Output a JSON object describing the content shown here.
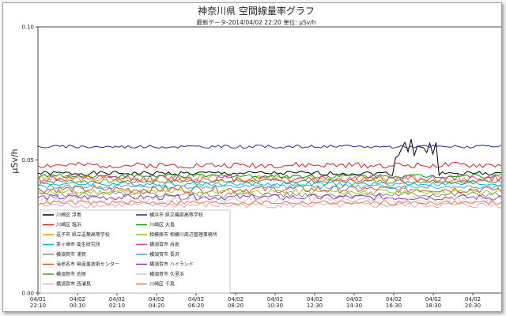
{
  "chart_data": {
    "type": "line",
    "title": "神奈川県 空間線量率グラフ",
    "subtitle": "最新データ-2014/04/02 22:20 単位: μSv/h",
    "ylabel": "μSv/h",
    "xlabel": "",
    "ylim": [
      0,
      0.1
    ],
    "y_ticks": [
      "0.00",
      "0.05",
      "0.10"
    ],
    "grid": false,
    "legend_position": "bottom-left",
    "x_ticks": [
      {
        "date": "04/01",
        "time": "22:10"
      },
      {
        "date": "04/02",
        "time": "00:10"
      },
      {
        "date": "04/02",
        "time": "02:10"
      },
      {
        "date": "04/02",
        "time": "04:20"
      },
      {
        "date": "04/02",
        "time": "06:20"
      },
      {
        "date": "04/02",
        "time": "08:20"
      },
      {
        "date": "04/02",
        "time": "10:30"
      },
      {
        "date": "04/02",
        "time": "12:30"
      },
      {
        "date": "04/02",
        "time": "14:30"
      },
      {
        "date": "04/02",
        "time": "16:30"
      },
      {
        "date": "04/02",
        "time": "18:30"
      },
      {
        "date": "04/02",
        "time": "20:30"
      }
    ],
    "series": [
      {
        "name": "川崎区 浮島",
        "color": "#000000",
        "value": 0.045
      },
      {
        "name": "川崎区 塩浜",
        "color": "#d42020",
        "value": 0.048
      },
      {
        "name": "逗子市 県立逗葉高等学校",
        "color": "#e0a000",
        "value": 0.043
      },
      {
        "name": "茅ヶ崎市 衛生研究所",
        "color": "#00b7d6",
        "value": 0.041
      },
      {
        "name": "横須賀市 浦賀",
        "color": "#8c8c8c",
        "value": 0.037
      },
      {
        "name": "海老名市 県産業技術センター",
        "color": "#d05020",
        "value": 0.039
      },
      {
        "name": "横須賀市 佐原",
        "color": "#6b8e23",
        "value": 0.042
      },
      {
        "name": "横須賀市 西浦見",
        "color": "#f0a0d0",
        "value": 0.033
      },
      {
        "name": "横浜市 県立磯部高等学校",
        "color": "#1c2f9e",
        "value": 0.055
      },
      {
        "name": "川崎区 大島",
        "color": "#00a000",
        "value": 0.044
      },
      {
        "name": "相模原市 相模川周辺管理事務所",
        "color": "#a0c020",
        "value": 0.038
      },
      {
        "name": "横須賀市 舟倉",
        "color": "#e040a0",
        "value": 0.043
      },
      {
        "name": "横須賀市 長沢",
        "color": "#4aa0e0",
        "value": 0.04
      },
      {
        "name": "横須賀市 ハイランド",
        "color": "#9030c0",
        "value": 0.036
      },
      {
        "name": "横須賀市 久里浜",
        "color": "#c8c8c8",
        "value": 0.035
      },
      {
        "name": "川崎区 千鳥",
        "color": "#f07a40",
        "value": 0.034
      }
    ]
  }
}
